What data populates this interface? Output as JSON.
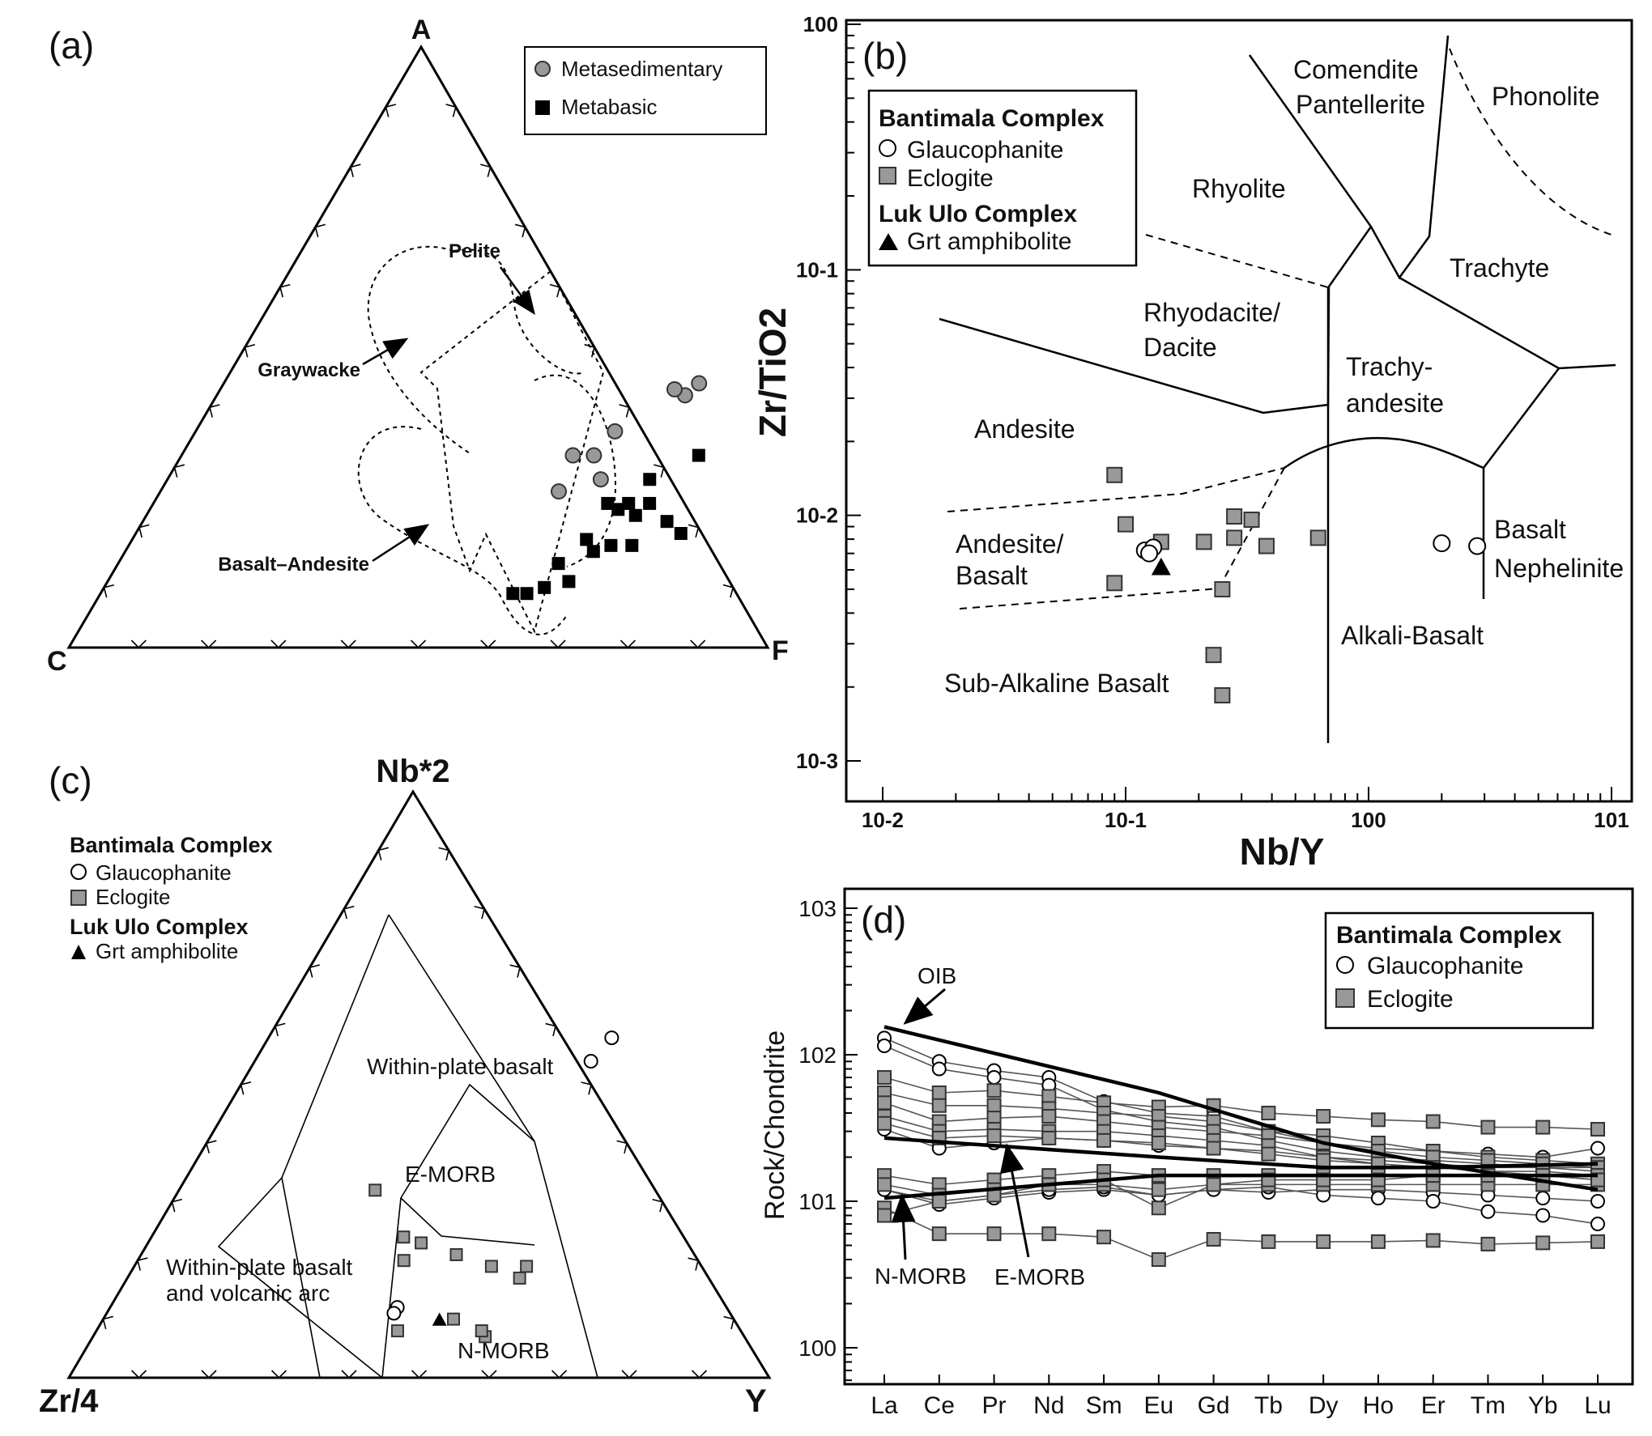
{
  "chart_data": [
    {
      "panel": "(a)",
      "type": "scatter",
      "subtype": "ternary",
      "vertices": {
        "top": "A",
        "left": "C",
        "right": "F"
      },
      "legend": {
        "position": "top-right",
        "entries": [
          "Metasedimentary",
          "Metabasic"
        ]
      },
      "fields": [
        "Pelite",
        "Graywacke",
        "Basalt–Andesite"
      ],
      "series": [
        {
          "name": "Metasedimentary",
          "points": [
            [
              0.44,
              0.23
            ],
            [
              0.42,
              0.22
            ],
            [
              0.43,
              0.2
            ],
            [
              0.36,
              0.15
            ],
            [
              0.32,
              0.14
            ],
            [
              0.32,
              0.11
            ],
            [
              0.26,
              0.12
            ],
            [
              0.28,
              0.17
            ]
          ]
        },
        {
          "name": "Metabasic",
          "points": [
            [
              0.32,
              0.29
            ],
            [
              0.28,
              0.24
            ],
            [
              0.24,
              0.26
            ],
            [
              0.24,
              0.23
            ],
            [
              0.22,
              0.25
            ],
            [
              0.23,
              0.22
            ],
            [
              0.24,
              0.2
            ],
            [
              0.21,
              0.3
            ],
            [
              0.19,
              0.33
            ],
            [
              0.17,
              0.24
            ],
            [
              0.18,
              0.2
            ],
            [
              0.17,
              0.27
            ],
            [
              0.16,
              0.22
            ],
            [
              0.14,
              0.18
            ],
            [
              0.11,
              0.21
            ],
            [
              0.1,
              0.18
            ],
            [
              0.09,
              0.16
            ],
            [
              0.09,
              0.14
            ]
          ]
        }
      ]
    },
    {
      "panel": "(b)",
      "type": "scatter",
      "xscale": "log",
      "yscale": "log",
      "xlabel": "Nb/Y",
      "ylabel": "Zr/TiO2",
      "xlim": [
        0.01,
        10
      ],
      "ylim": [
        0.001,
        1
      ],
      "xticks": [
        "10-2",
        "10-1",
        "100",
        "101"
      ],
      "yticks": [
        "10-3",
        "10-2",
        "10-1",
        "100"
      ],
      "legend": {
        "position": "top-left",
        "groups": [
          {
            "title": "Bantimala Complex",
            "entries": [
              "Glaucophanite",
              "Eclogite"
            ]
          },
          {
            "title": "Luk Ulo Complex",
            "entries": [
              "Grt amphibolite"
            ]
          }
        ]
      },
      "fields": [
        "Comendite\nPantellerite",
        "Phonolite",
        "Rhyolite",
        "Trachyte",
        "Rhyodacite/\nDacite",
        "Trachy-\nandesite",
        "Andesite",
        "Andesite/\nBasalt",
        "Basalt\nNephelinite",
        "Alkali-Basalt",
        "Sub-Alkaline Basalt"
      ],
      "series": [
        {
          "name": "Glaucophanite",
          "points": [
            [
              0.12,
              0.0072
            ],
            [
              0.13,
              0.0074
            ],
            [
              0.125,
              0.007
            ],
            [
              2.0,
              0.0077
            ],
            [
              2.8,
              0.0075
            ]
          ]
        },
        {
          "name": "Eclogite",
          "points": [
            [
              0.09,
              0.0146
            ],
            [
              0.1,
              0.0092
            ],
            [
              0.14,
              0.0078
            ],
            [
              0.09,
              0.0053
            ],
            [
              0.21,
              0.0078
            ],
            [
              0.28,
              0.0099
            ],
            [
              0.28,
              0.0081
            ],
            [
              0.33,
              0.0096
            ],
            [
              0.38,
              0.0075
            ],
            [
              0.62,
              0.0081
            ],
            [
              0.25,
              0.005
            ],
            [
              0.23,
              0.0027
            ],
            [
              0.25,
              0.00185
            ]
          ]
        },
        {
          "name": "Grt amphibolite",
          "points": [
            [
              0.14,
              0.0062
            ]
          ]
        }
      ]
    },
    {
      "panel": "(c)",
      "type": "scatter",
      "subtype": "ternary",
      "vertices": {
        "top": "Nb*2",
        "left": "Zr/4",
        "right": "Y"
      },
      "legend": {
        "position": "top-left",
        "groups": [
          {
            "title": "Bantimala Complex",
            "entries": [
              "Glaucophanite",
              "Eclogite"
            ]
          },
          {
            "title": "Luk Ulo Complex",
            "entries": [
              "Grt amphibolite"
            ]
          }
        ]
      },
      "fields": [
        "Within-plate basalt",
        "E-MORB",
        "Within-plate basalt\nand volcanic arc",
        "N-MORB"
      ],
      "series": [
        {
          "name": "Glaucophanite",
          "points": [
            [
              0.58,
              0.49
            ],
            [
              0.54,
              0.48
            ],
            [
              0.12,
              0.41
            ],
            [
              0.11,
              0.41
            ]
          ]
        },
        {
          "name": "Eclogite",
          "points": [
            [
              0.32,
              0.28
            ],
            [
              0.24,
              0.36
            ],
            [
              0.23,
              0.39
            ],
            [
              0.2,
              0.38
            ],
            [
              0.21,
              0.45
            ],
            [
              0.19,
              0.51
            ],
            [
              0.19,
              0.56
            ],
            [
              0.17,
              0.56
            ],
            [
              0.07,
              0.56
            ],
            [
              0.08,
              0.55
            ],
            [
              0.1,
              0.5
            ],
            [
              0.08,
              0.43
            ]
          ]
        },
        {
          "name": "Grt amphibolite",
          "points": [
            [
              0.1,
              0.48
            ]
          ]
        }
      ]
    },
    {
      "panel": "(d)",
      "type": "line",
      "yscale": "log",
      "ylabel": "Rock/Chondrite",
      "ylim": [
        0.6,
        1000
      ],
      "yticks": [
        "100",
        "101",
        "102",
        "103"
      ],
      "categories": [
        "La",
        "Ce",
        "Pr",
        "Nd",
        "Sm",
        "Eu",
        "Gd",
        "Tb",
        "Dy",
        "Ho",
        "Er",
        "Tm",
        "Yb",
        "Lu"
      ],
      "legend": {
        "position": "top-right",
        "groups": [
          {
            "title": "Bantimala Complex",
            "entries": [
              "Glaucophanite",
              "Eclogite"
            ]
          }
        ]
      },
      "reference_labels": [
        "OIB",
        "N-MORB",
        "E-MORB"
      ],
      "reference": [
        {
          "name": "OIB",
          "values": [
            155,
            null,
            null,
            null,
            null,
            55,
            null,
            null,
            25,
            null,
            18,
            null,
            null,
            12
          ]
        },
        {
          "name": "E-MORB",
          "values": [
            27,
            null,
            null,
            null,
            null,
            20,
            null,
            null,
            17,
            null,
            17,
            null,
            null,
            18
          ]
        },
        {
          "name": "N-MORB",
          "values": [
            10.5,
            null,
            null,
            null,
            null,
            15,
            null,
            null,
            15,
            null,
            15,
            null,
            null,
            15
          ]
        }
      ],
      "series": [
        {
          "name": "Glaucophanite",
          "values": [
            130,
            90,
            78,
            70,
            48,
            40,
            38,
            30,
            25,
            23,
            22,
            21,
            20,
            23
          ]
        },
        {
          "name": "Glaucophanite",
          "values": [
            115,
            80,
            70,
            62,
            42,
            35,
            32,
            26,
            22,
            20,
            19,
            18,
            17,
            17
          ]
        },
        {
          "name": "Glaucophanite",
          "values": [
            31,
            23,
            25,
            27,
            26,
            24,
            23,
            22,
            20,
            19,
            18,
            17,
            17,
            16
          ]
        },
        {
          "name": "Glaucophanite",
          "values": [
            12,
            9.5,
            10.5,
            11.5,
            12,
            11,
            12,
            11.5,
            12,
            12,
            11.5,
            11,
            10.5,
            10
          ]
        },
        {
          "name": "Glaucophanite",
          "values": [
            12,
            10,
            11,
            12,
            12.5,
            11,
            12,
            12.5,
            11,
            10.5,
            10,
            8.5,
            8,
            7
          ]
        },
        {
          "name": "Eclogite",
          "values": [
            70,
            55,
            57,
            52,
            47,
            44,
            45,
            40,
            38,
            36,
            35,
            32,
            32,
            31
          ]
        },
        {
          "name": "Eclogite",
          "values": [
            55,
            45,
            45,
            43,
            40,
            38,
            35,
            30,
            28,
            25,
            22,
            20,
            19,
            18
          ]
        },
        {
          "name": "Eclogite",
          "values": [
            47,
            35,
            37,
            38,
            35,
            32,
            30,
            28,
            25,
            22,
            20,
            19,
            18,
            17
          ]
        },
        {
          "name": "Eclogite",
          "values": [
            38,
            30,
            31,
            30,
            30,
            28,
            26,
            24,
            20,
            18,
            17,
            16,
            15,
            15
          ]
        },
        {
          "name": "Eclogite",
          "values": [
            34,
            27,
            28,
            27,
            26,
            25,
            23,
            21,
            19,
            18,
            17,
            16,
            16,
            15
          ]
        },
        {
          "name": "Eclogite",
          "values": [
            15,
            13,
            14,
            15,
            16,
            15,
            15,
            15,
            15,
            15,
            15,
            15,
            15,
            14
          ]
        },
        {
          "name": "Eclogite",
          "values": [
            13,
            11,
            12,
            13,
            13,
            12,
            13,
            13,
            13,
            13,
            13,
            13,
            13,
            13
          ]
        },
        {
          "name": "Eclogite",
          "values": [
            9,
            6,
            6,
            6,
            5.7,
            4,
            5.5,
            5.3,
            5.3,
            5.3,
            5.4,
            5.1,
            5.2,
            5.3
          ]
        },
        {
          "name": "Eclogite",
          "values": [
            8,
            10,
            11,
            13,
            14,
            9,
            13,
            14,
            14,
            14,
            15,
            15,
            15,
            14
          ]
        }
      ]
    }
  ]
}
